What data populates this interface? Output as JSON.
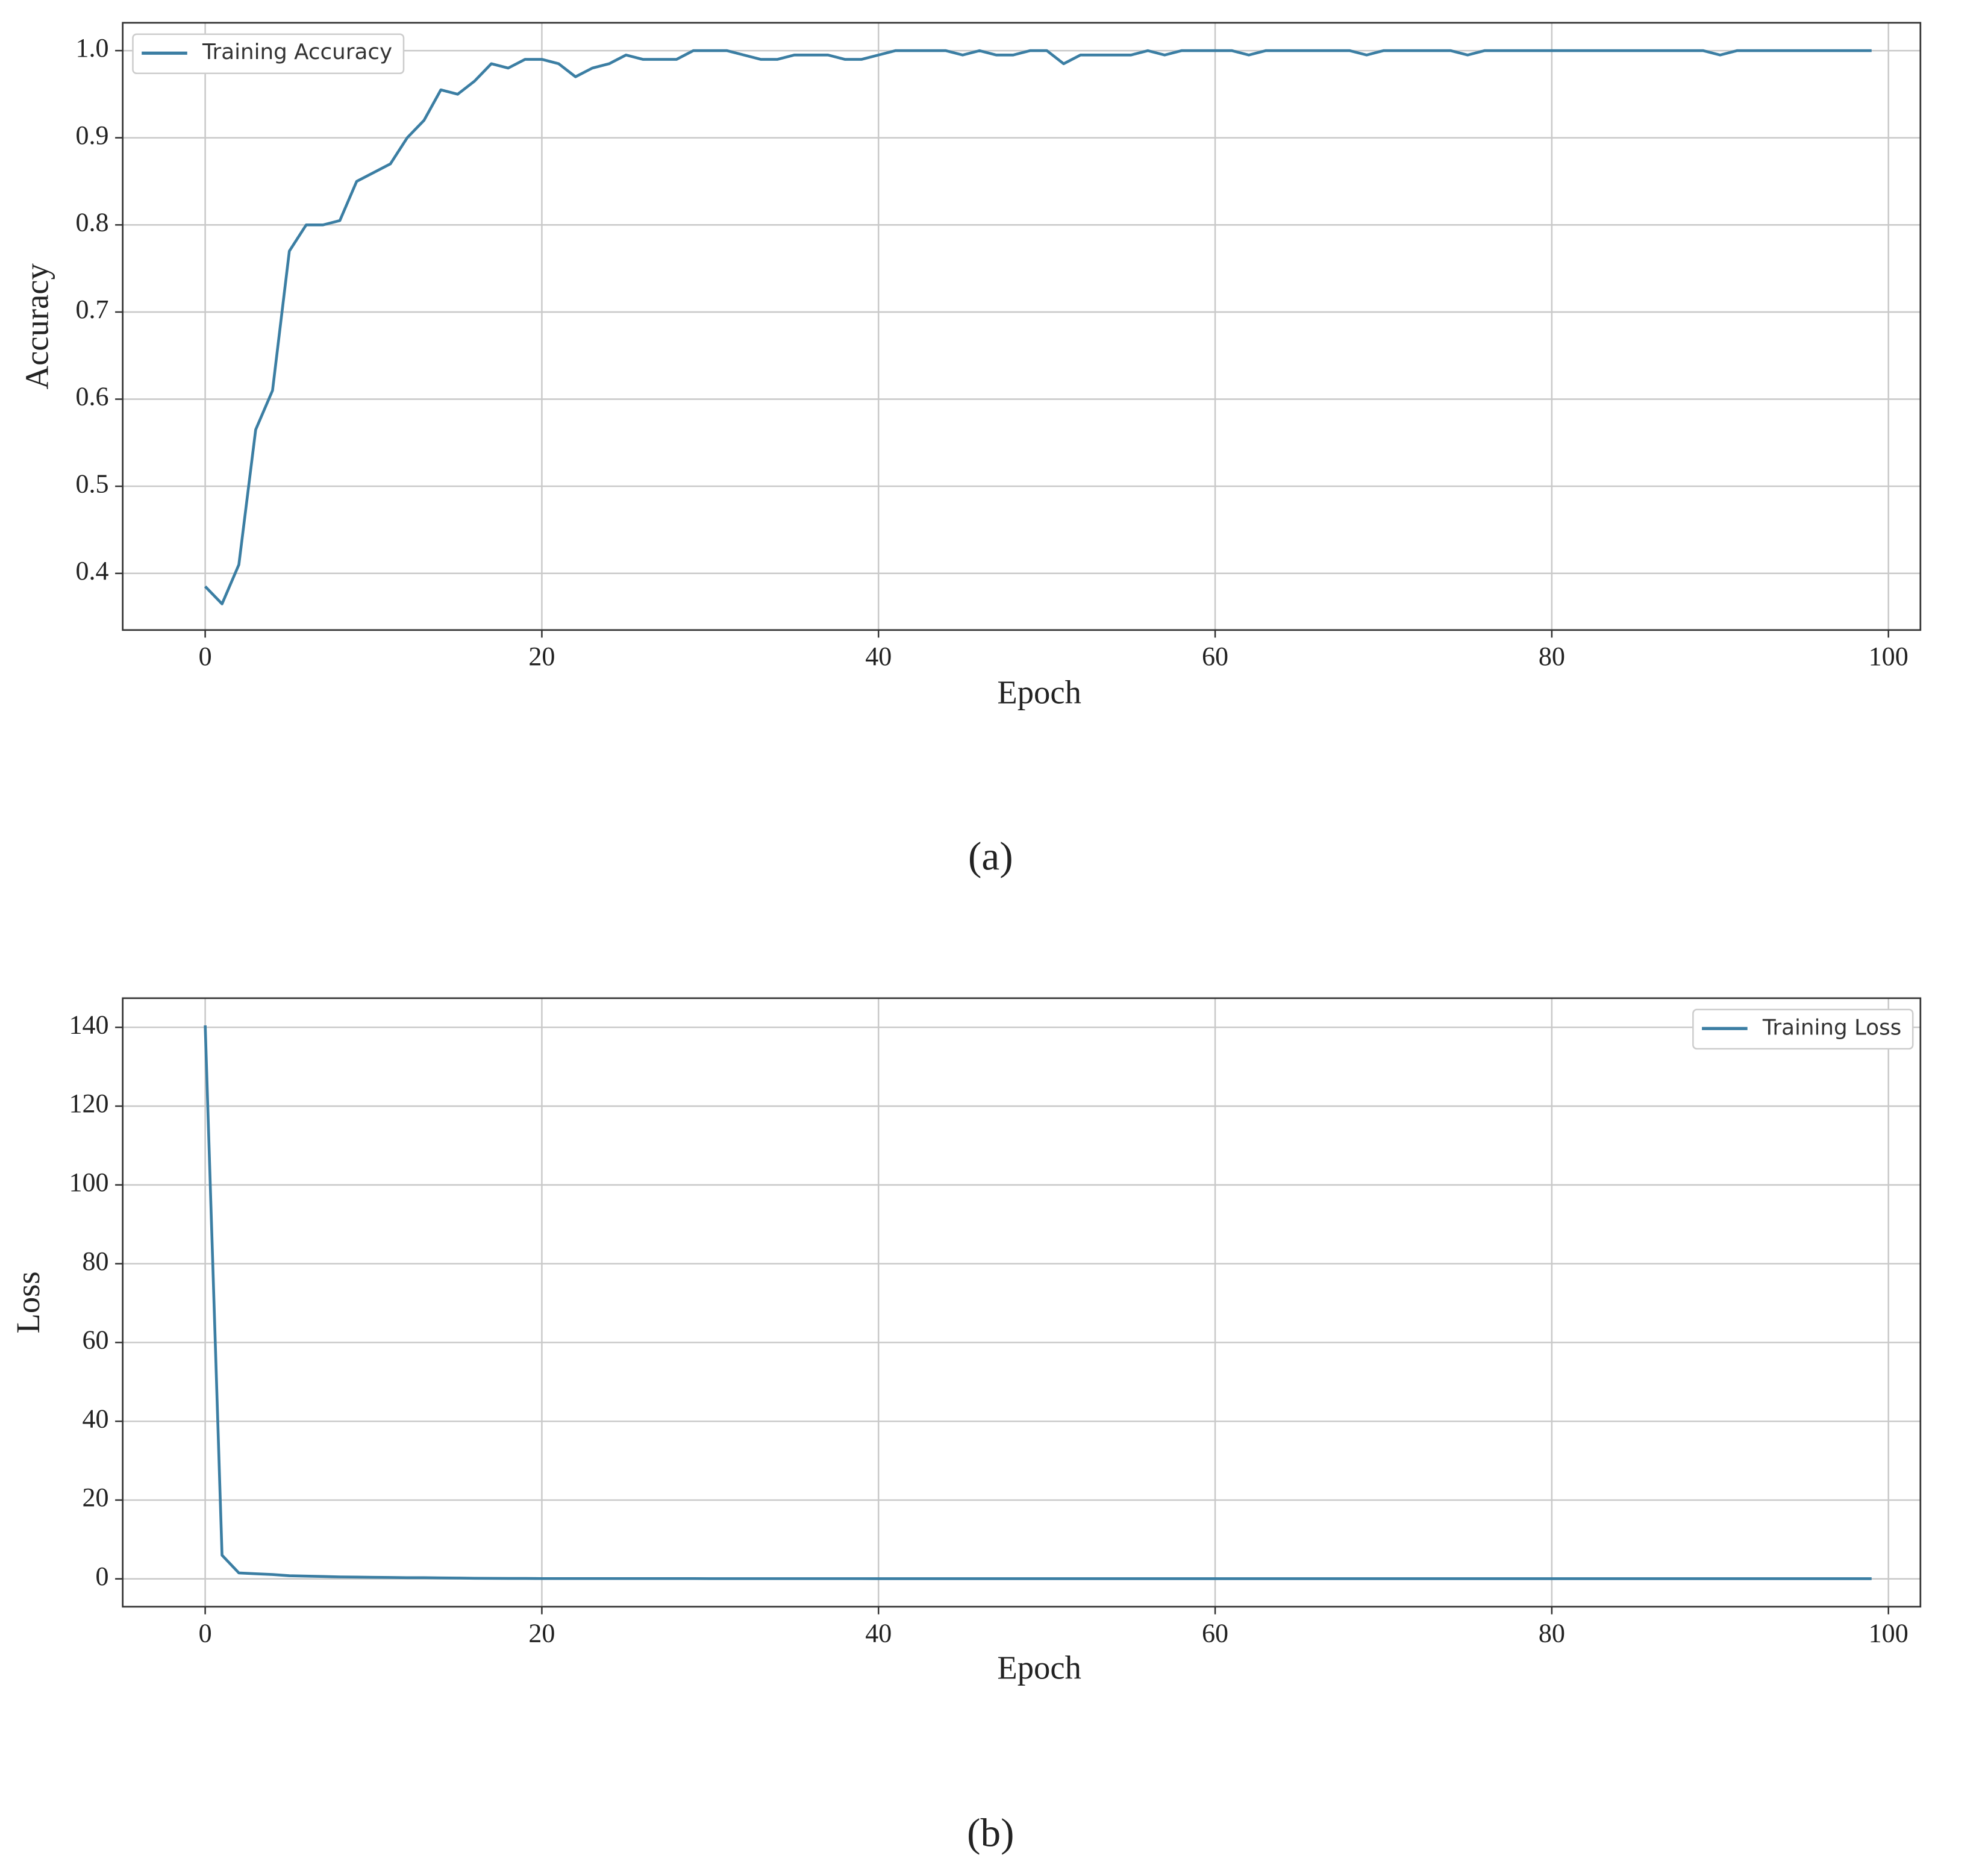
{
  "chart_data": [
    {
      "type": "line",
      "xlabel": "Epoch",
      "ylabel": "Accuracy",
      "caption": "(a)",
      "x": [
        0,
        1,
        2,
        3,
        4,
        5,
        6,
        7,
        8,
        9,
        10,
        11,
        12,
        13,
        14,
        15,
        16,
        17,
        18,
        19,
        20,
        21,
        22,
        23,
        24,
        25,
        26,
        27,
        28,
        29,
        30,
        31,
        32,
        33,
        34,
        35,
        36,
        37,
        38,
        39,
        40,
        41,
        42,
        43,
        44,
        45,
        46,
        47,
        48,
        49,
        50,
        51,
        52,
        53,
        54,
        55,
        56,
        57,
        58,
        59,
        60,
        61,
        62,
        63,
        64,
        65,
        66,
        67,
        68,
        69,
        70,
        71,
        72,
        73,
        74,
        75,
        76,
        77,
        78,
        79,
        80,
        81,
        82,
        83,
        84,
        85,
        86,
        87,
        88,
        89,
        90,
        91,
        92,
        93,
        94,
        95,
        96,
        97,
        98,
        99
      ],
      "series": [
        {
          "name": "Training Accuracy",
          "color": "#3b7ea3",
          "values": [
            0.385,
            0.365,
            0.41,
            0.565,
            0.61,
            0.77,
            0.8,
            0.8,
            0.805,
            0.85,
            0.86,
            0.87,
            0.9,
            0.92,
            0.955,
            0.95,
            0.965,
            0.985,
            0.98,
            0.99,
            0.99,
            0.985,
            0.97,
            0.98,
            0.985,
            0.995,
            0.99,
            0.99,
            0.99,
            1.0,
            1.0,
            1.0,
            0.995,
            0.99,
            0.99,
            0.995,
            0.995,
            0.995,
            0.99,
            0.99,
            0.995,
            1.0,
            1.0,
            1.0,
            1.0,
            0.995,
            1.0,
            0.995,
            0.995,
            1.0,
            1.0,
            0.985,
            0.995,
            0.995,
            0.995,
            0.995,
            1.0,
            0.995,
            1.0,
            1.0,
            1.0,
            1.0,
            0.995,
            1.0,
            1.0,
            1.0,
            1.0,
            1.0,
            1.0,
            0.995,
            1.0,
            1.0,
            1.0,
            1.0,
            1.0,
            0.995,
            1.0,
            1.0,
            1.0,
            1.0,
            1.0,
            1.0,
            1.0,
            1.0,
            1.0,
            1.0,
            1.0,
            1.0,
            1.0,
            1.0,
            0.995,
            1.0,
            1.0,
            1.0,
            1.0,
            1.0,
            1.0,
            1.0,
            1.0,
            1.0
          ]
        }
      ],
      "xlim": [
        -4.9,
        101.9
      ],
      "xticks": [
        0,
        20,
        40,
        60,
        80,
        100
      ],
      "ylim": [
        0.335,
        1.032
      ],
      "yticks": [
        0.4,
        0.5,
        0.6,
        0.7,
        0.8,
        0.9,
        {
          "value": 1,
          "label": "1.0"
        }
      ],
      "grid": true,
      "legend": "upper-left"
    },
    {
      "type": "line",
      "xlabel": "Epoch",
      "ylabel": "Loss",
      "caption": "(b)",
      "x": [
        0,
        1,
        2,
        3,
        4,
        5,
        6,
        7,
        8,
        9,
        10,
        11,
        12,
        13,
        14,
        15,
        16,
        17,
        18,
        19,
        20,
        21,
        22,
        23,
        24,
        25,
        26,
        27,
        28,
        29,
        30,
        31,
        32,
        33,
        34,
        35,
        36,
        37,
        38,
        39,
        40,
        41,
        42,
        43,
        44,
        45,
        46,
        47,
        48,
        49,
        50,
        51,
        52,
        53,
        54,
        55,
        56,
        57,
        58,
        59,
        60,
        61,
        62,
        63,
        64,
        65,
        66,
        67,
        68,
        69,
        70,
        71,
        72,
        73,
        74,
        75,
        76,
        77,
        78,
        79,
        80,
        81,
        82,
        83,
        84,
        85,
        86,
        87,
        88,
        89,
        90,
        91,
        92,
        93,
        94,
        95,
        96,
        97,
        98,
        99
      ],
      "series": [
        {
          "name": "Training Loss",
          "color": "#3b7ea3",
          "values": [
            140.5,
            6,
            1.5,
            1.3,
            1.1,
            0.8,
            0.7,
            0.6,
            0.5,
            0.45,
            0.4,
            0.35,
            0.3,
            0.3,
            0.25,
            0.2,
            0.15,
            0.12,
            0.1,
            0.1,
            0.08,
            0.08,
            0.08,
            0.08,
            0.08,
            0.08,
            0.08,
            0.08,
            0.08,
            0.08,
            0.06,
            0.06,
            0.06,
            0.06,
            0.06,
            0.06,
            0.06,
            0.06,
            0.06,
            0.06,
            0.05,
            0.05,
            0.05,
            0.05,
            0.05,
            0.05,
            0.05,
            0.05,
            0.05,
            0.05,
            0.05,
            0.05,
            0.05,
            0.05,
            0.05,
            0.05,
            0.05,
            0.05,
            0.05,
            0.05,
            0.05,
            0.05,
            0.05,
            0.05,
            0.05,
            0.05,
            0.05,
            0.05,
            0.05,
            0.05,
            0.05,
            0.05,
            0.05,
            0.05,
            0.05,
            0.05,
            0.05,
            0.05,
            0.05,
            0.05,
            0.05,
            0.05,
            0.05,
            0.05,
            0.05,
            0.05,
            0.05,
            0.05,
            0.05,
            0.05,
            0.05,
            0.05,
            0.05,
            0.05,
            0.05,
            0.05,
            0.05,
            0.05,
            0.05,
            0.05
          ]
        }
      ],
      "xlim": [
        -4.9,
        101.9
      ],
      "xticks": [
        0,
        20,
        40,
        60,
        80,
        100
      ],
      "ylim": [
        -7.07,
        147.4
      ],
      "yticks": [
        0,
        20,
        40,
        60,
        80,
        100,
        120,
        140
      ],
      "grid": true,
      "legend": "upper-right"
    }
  ]
}
